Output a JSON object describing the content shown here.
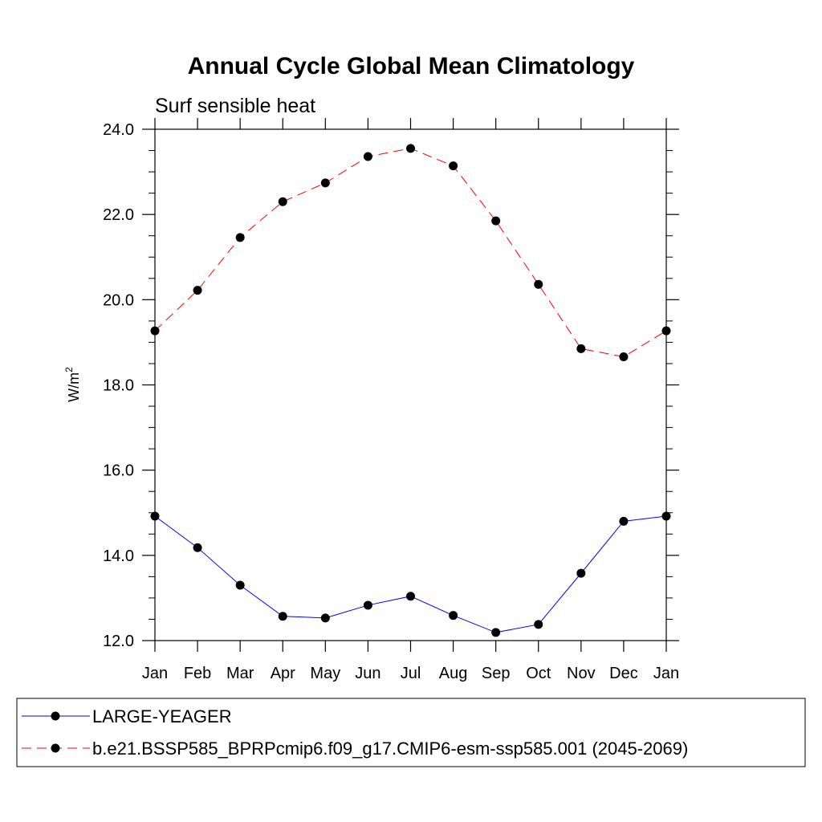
{
  "chart_data": {
    "type": "line",
    "title": "Annual Cycle Global Mean Climatology",
    "subtitle": "Surf sensible heat",
    "ylabel": "W/m",
    "ylabel_superscript": "2",
    "xlabel": "",
    "categories": [
      "Jan",
      "Feb",
      "Mar",
      "Apr",
      "May",
      "Jun",
      "Jul",
      "Aug",
      "Sep",
      "Oct",
      "Nov",
      "Dec",
      "Jan"
    ],
    "ylim": [
      12.0,
      24.0
    ],
    "yticks": [
      "12.0",
      "14.0",
      "16.0",
      "18.0",
      "20.0",
      "22.0",
      "24.0"
    ],
    "grid": false,
    "legend_position": "bottom",
    "series": [
      {
        "name": "LARGE-YEAGER",
        "color": "#0000ff",
        "dash": "solid",
        "values": [
          14.92,
          14.18,
          13.3,
          12.57,
          12.53,
          12.83,
          13.04,
          12.59,
          12.19,
          12.38,
          13.58,
          14.8,
          14.92
        ]
      },
      {
        "name": "b.e21.BSSP585_BPRPcmip6.f09_g17.CMIP6-esm-ssp585.001 (2045-2069)",
        "color": "#ff0000",
        "dash": "dashed",
        "values": [
          19.27,
          20.22,
          21.46,
          22.3,
          22.74,
          23.36,
          23.55,
          23.14,
          21.85,
          20.36,
          18.85,
          18.66,
          19.27
        ]
      }
    ]
  }
}
